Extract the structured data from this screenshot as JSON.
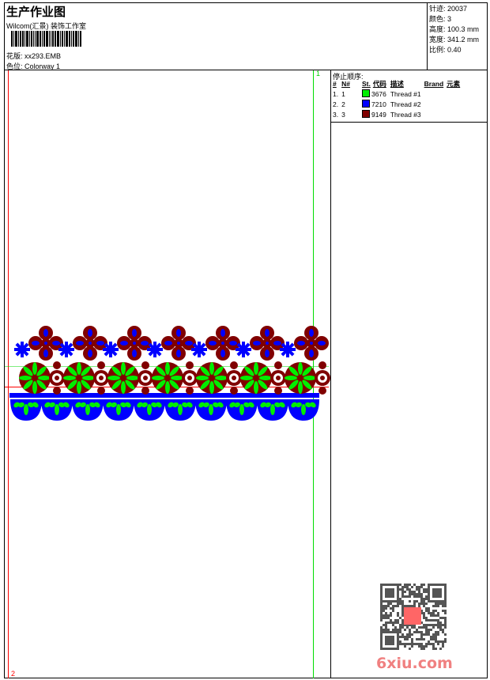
{
  "header": {
    "title": "生产作业图",
    "studio": "Wilcom(汇景) 装饰工作室",
    "pattern_label": "花版:",
    "pattern_value": "xx293.EMB",
    "colorway_label": "色位:",
    "colorway_value": "Colorway 1"
  },
  "stats": [
    {
      "label": "针迹:",
      "value": "20037"
    },
    {
      "label": "颜色:",
      "value": "3"
    },
    {
      "label": "高度:",
      "value": "100.3 mm"
    },
    {
      "label": "宽度:",
      "value": "341.2 mm"
    },
    {
      "label": "比例:",
      "value": "0.40"
    }
  ],
  "stop_sequence": {
    "title": "停止顺序:",
    "headers": [
      "#",
      "N#",
      "St.",
      "代码",
      "描述",
      "Brand",
      "元素"
    ],
    "rows": [
      {
        "idx": "1.",
        "n": "1",
        "color": "#00ee00",
        "code": "3676",
        "desc": "Thread #1"
      },
      {
        "idx": "2.",
        "n": "2",
        "color": "#0000ff",
        "code": "7210",
        "desc": "Thread #2"
      },
      {
        "idx": "3.",
        "n": "3",
        "color": "#800000",
        "code": "9149",
        "desc": "Thread #3"
      }
    ]
  },
  "markers": {
    "top_right": "1",
    "mid_right": "2",
    "bottom_left": "2"
  },
  "colors": {
    "green": "#00ee00",
    "blue": "#0000ff",
    "maroon": "#800000",
    "guide_red": "#ff0000",
    "guide_green": "#00dd00"
  },
  "watermark": "6xiu.com"
}
